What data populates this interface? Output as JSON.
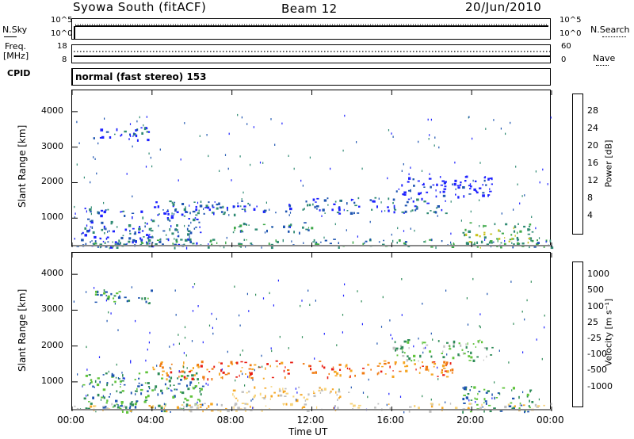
{
  "header": {
    "station": "Syowa South (fitACF)",
    "beam": "Beam 12",
    "date": "20/Jun/2010"
  },
  "left_labels": {
    "nsky": "N.Sky",
    "freq": "Freq.",
    "mhz": "[MHz]",
    "cpid": "CPID"
  },
  "right_labels": {
    "nsearch": "N.Search",
    "nave": "Nave"
  },
  "strip_ticks": {
    "noise_left": [
      "10^5",
      "10^0"
    ],
    "noise_right": [
      "10^5",
      "10^0"
    ],
    "freq_left": [
      "18",
      "8"
    ],
    "nave_right": [
      "60",
      "0"
    ]
  },
  "cpid_text": "normal (fast stereo) 153",
  "x_axis_title": "Time UT",
  "y_axis_title": "Slant Range [km]",
  "colors": {
    "data_dots": "#000000"
  },
  "chart_data": [
    {
      "type": "heatmap",
      "panel": "power",
      "xlabel": "Time UT",
      "ylabel": "Slant Range [km]",
      "x_ticks": [
        "00:00",
        "04:00",
        "08:00",
        "12:00",
        "16:00",
        "20:00",
        "00:00"
      ],
      "y_ticks": [
        "1000",
        "2000",
        "3000",
        "4000"
      ],
      "ylim": [
        180,
        4600
      ],
      "colorbar": {
        "label": "Power [dB]",
        "ticks": [
          "4",
          "8",
          "12",
          "16",
          "20",
          "24",
          "28"
        ],
        "colors": [
          "#1e22ff",
          "#1d54b0",
          "#2f8a73",
          "#3fa94a",
          "#c7c21a",
          "#f2a51a",
          "#f06419",
          "#e81d12"
        ]
      },
      "regions": [
        {
          "t0": 0.5,
          "t1": 6.5,
          "r0": 180,
          "r1": 1300,
          "c": 1
        },
        {
          "t0": 1.0,
          "t1": 4.0,
          "r0": 3200,
          "r1": 3600,
          "c": 1
        },
        {
          "t0": 4.0,
          "t1": 11.0,
          "r0": 1100,
          "r1": 1500,
          "c": 1
        },
        {
          "t0": 8.0,
          "t1": 12.0,
          "r0": 600,
          "r1": 900,
          "c": 2
        },
        {
          "t0": 11.5,
          "t1": 19.0,
          "r0": 1150,
          "r1": 1600,
          "c": 1
        },
        {
          "t0": 16.0,
          "t1": 21.0,
          "r0": 1600,
          "r1": 2200,
          "c": 0
        },
        {
          "t0": 0.0,
          "t1": 24.0,
          "r0": 200,
          "r1": 420,
          "c": 2
        },
        {
          "t0": 19.5,
          "t1": 23.0,
          "r0": 180,
          "r1": 900,
          "c": 3
        }
      ]
    },
    {
      "type": "heatmap",
      "panel": "velocity",
      "xlabel": "Time UT",
      "ylabel": "Slant Range [km]",
      "x_ticks": [
        "00:00",
        "04:00",
        "08:00",
        "12:00",
        "16:00",
        "20:00",
        "00:00"
      ],
      "y_ticks": [
        "1000",
        "2000",
        "3000",
        "4000"
      ],
      "ylim": [
        180,
        4600
      ],
      "colorbar": {
        "label": "Velocity [m s⁻¹]",
        "ticks": [
          "1000",
          "500",
          "100",
          "25",
          "-25",
          "-100",
          "-500",
          "-1000"
        ],
        "colors": [
          "#1e22ff",
          "#1d54b0",
          "#2e8b57",
          "#5fc33a",
          "#c0c0c0",
          "#f7d37a",
          "#f5a623",
          "#f07a10",
          "#e81d12"
        ]
      },
      "regions": [
        {
          "t0": 0.5,
          "t1": 6.5,
          "r0": 180,
          "r1": 1300,
          "c": 2
        },
        {
          "t0": 1.0,
          "t1": 4.0,
          "r0": 3200,
          "r1": 3600,
          "c": 2
        },
        {
          "t0": 4.0,
          "t1": 11.0,
          "r0": 1100,
          "r1": 1600,
          "c": 7
        },
        {
          "t0": 8.0,
          "t1": 14.0,
          "r0": 500,
          "r1": 900,
          "c": 5
        },
        {
          "t0": 11.5,
          "t1": 19.0,
          "r0": 1150,
          "r1": 1600,
          "c": 7
        },
        {
          "t0": 16.0,
          "t1": 21.0,
          "r0": 1600,
          "r1": 2200,
          "c": 3
        },
        {
          "t0": 0.0,
          "t1": 24.0,
          "r0": 200,
          "r1": 420,
          "c": 5
        },
        {
          "t0": 19.5,
          "t1": 23.0,
          "r0": 180,
          "r1": 900,
          "c": 2
        }
      ]
    }
  ]
}
